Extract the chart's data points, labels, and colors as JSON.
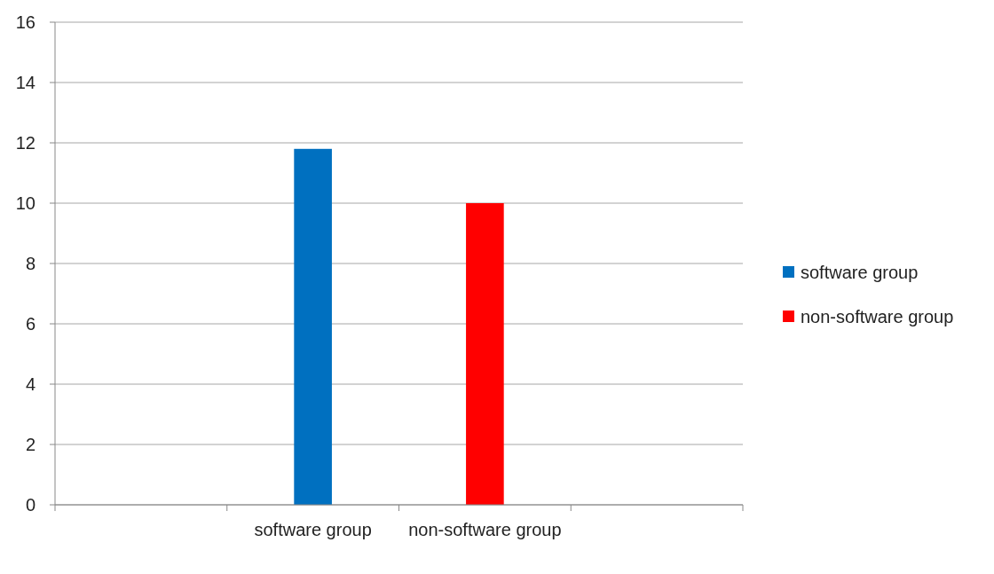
{
  "chart_data": {
    "type": "bar",
    "categories": [
      null,
      "software group",
      "non-software group",
      null
    ],
    "series": [
      {
        "name": "software group",
        "color": "#0070c0",
        "values": [
          null,
          11.8,
          null,
          null
        ]
      },
      {
        "name": "non-software group",
        "color": "#ff0000",
        "values": [
          null,
          null,
          10,
          null
        ]
      }
    ],
    "ylim": [
      0,
      16
    ],
    "yticks": [
      0,
      2,
      4,
      6,
      8,
      10,
      12,
      14,
      16
    ],
    "grid": "y",
    "legend": "right"
  }
}
